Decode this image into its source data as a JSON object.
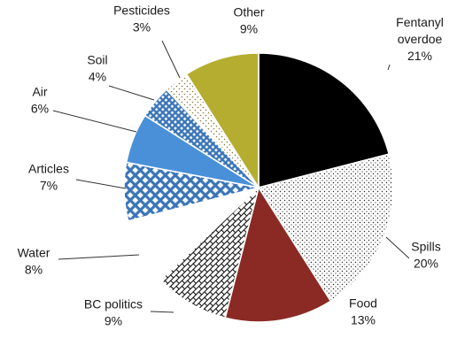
{
  "chart_data": {
    "type": "pie",
    "title": "",
    "start_angle_deg": 0,
    "direction": "clockwise",
    "slices": [
      {
        "label": [
          "Fentanyl",
          "overdoe"
        ],
        "value": 21,
        "pct_label": "21%",
        "pattern": "solid",
        "color": "#000000"
      },
      {
        "label": [
          "Spills"
        ],
        "value": 20,
        "pct_label": "20%",
        "pattern": "dots",
        "color": "#1a1a1a"
      },
      {
        "label": [
          "Food"
        ],
        "value": 13,
        "pct_label": "13%",
        "pattern": "solid",
        "color": "#8b2a24"
      },
      {
        "label": [
          "BC politics"
        ],
        "value": 9,
        "pct_label": "9%",
        "pattern": "brick",
        "color": "#1a1a1a"
      },
      {
        "label": [
          "Water"
        ],
        "value": 8,
        "pct_label": "8%",
        "pattern": "solid",
        "color": "#ffffff"
      },
      {
        "label": [
          "Articles"
        ],
        "value": 7,
        "pct_label": "7%",
        "pattern": "diamond",
        "color": "#3a75b8"
      },
      {
        "label": [
          "Air"
        ],
        "value": 6,
        "pct_label": "6%",
        "pattern": "solid",
        "color": "#4a90d9"
      },
      {
        "label": [
          "Soil"
        ],
        "value": 4,
        "pct_label": "4%",
        "pattern": "smalldiamond",
        "color": "#3a75b8"
      },
      {
        "label": [
          "Pesticides"
        ],
        "value": 3,
        "pct_label": "3%",
        "pattern": "sparse",
        "color": "#9a8a4a"
      },
      {
        "label": [
          "Other"
        ],
        "value": 9,
        "pct_label": "9%",
        "pattern": "solid",
        "color": "#b5ad2f"
      }
    ]
  }
}
